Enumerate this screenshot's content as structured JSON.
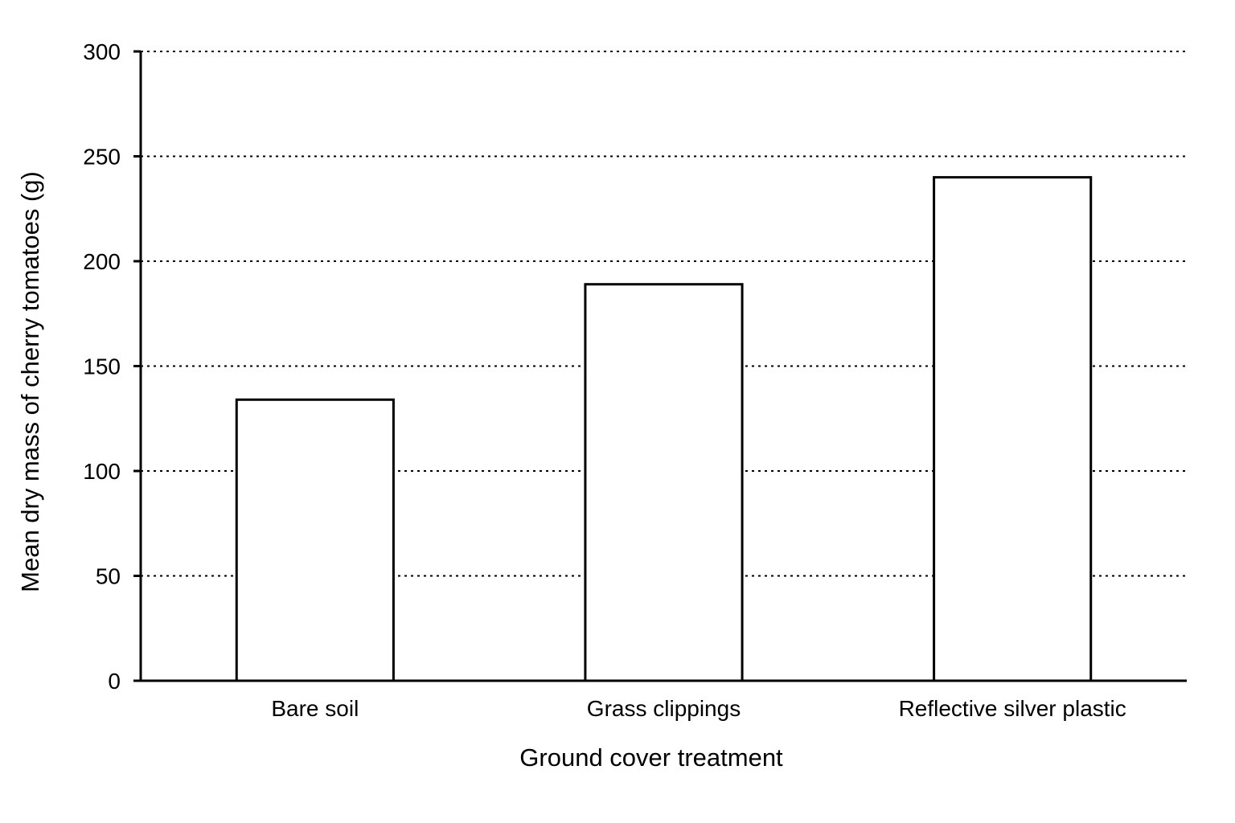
{
  "chart_data": {
    "type": "bar",
    "title": "",
    "xlabel": "Ground cover treatment",
    "ylabel": "Mean dry mass of cherry tomatoes (g)",
    "categories": [
      "Bare soil",
      "Grass clippings",
      "Reflective silver plastic"
    ],
    "values": [
      134,
      189,
      240
    ],
    "ylim": [
      0,
      300
    ],
    "yticks": [
      "0",
      "50",
      "100",
      "150",
      "200",
      "250",
      "300"
    ],
    "grid": true,
    "grid_style": "dotted horizontal",
    "bar_fill": "#ffffff",
    "bar_stroke": "#000000"
  }
}
